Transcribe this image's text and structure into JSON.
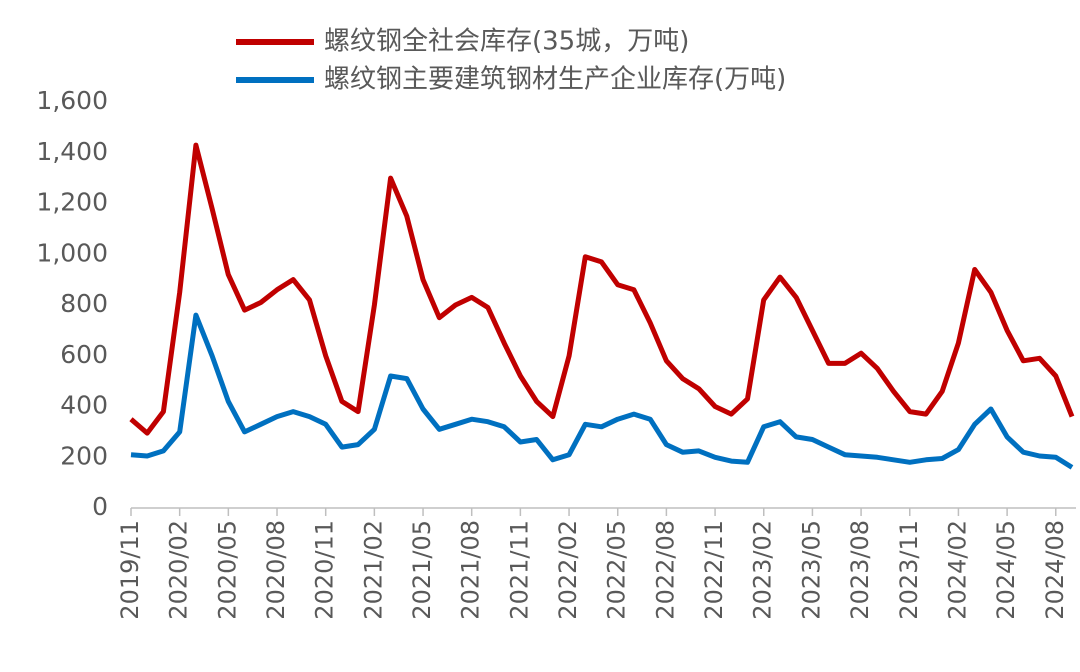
{
  "chart_data": {
    "type": "line",
    "categories": [
      "2019/11",
      null,
      null,
      "2020/02",
      null,
      null,
      "2020/05",
      null,
      null,
      "2020/08",
      null,
      null,
      "2020/11",
      null,
      null,
      "2021/02",
      null,
      null,
      "2021/05",
      null,
      null,
      "2021/08",
      null,
      null,
      "2021/11",
      null,
      null,
      "2022/02",
      null,
      null,
      "2022/05",
      null,
      null,
      "2022/08",
      null,
      null,
      "2022/11",
      null,
      null,
      "2023/02",
      null,
      null,
      "2023/05",
      null,
      null,
      "2023/08",
      null,
      null,
      "2023/11",
      null,
      null,
      "2024/02",
      null,
      null,
      "2024/05",
      null,
      null,
      "2024/08",
      null
    ],
    "series": [
      {
        "name": "螺纹钢全社会库存(35城，万吨)",
        "color": "#c00000",
        "values": [
          350,
          295,
          380,
          850,
          1430,
          1180,
          920,
          780,
          810,
          860,
          900,
          820,
          600,
          420,
          380,
          800,
          1300,
          1150,
          900,
          750,
          800,
          830,
          790,
          650,
          520,
          420,
          360,
          600,
          990,
          970,
          880,
          860,
          730,
          580,
          510,
          470,
          400,
          370,
          430,
          820,
          910,
          830,
          700,
          570,
          570,
          610,
          550,
          460,
          380,
          370,
          460,
          650,
          940,
          850,
          700,
          580,
          590,
          520,
          360
        ]
      },
      {
        "name": "螺纹钢主要建筑钢材生产企业库存(万吨)",
        "color": "#0070c0",
        "values": [
          210,
          205,
          225,
          300,
          760,
          600,
          420,
          300,
          330,
          360,
          380,
          360,
          330,
          240,
          250,
          310,
          520,
          510,
          390,
          310,
          330,
          350,
          340,
          320,
          260,
          270,
          190,
          210,
          330,
          320,
          350,
          370,
          350,
          250,
          220,
          225,
          200,
          185,
          180,
          320,
          340,
          280,
          270,
          240,
          210,
          205,
          200,
          190,
          180,
          190,
          195,
          230,
          330,
          390,
          280,
          220,
          205,
          200,
          160
        ]
      }
    ],
    "ylim": [
      0,
      1600
    ],
    "yticks": [
      0,
      200,
      400,
      600,
      800,
      {
        "value": 1000,
        "label": "1,000"
      },
      {
        "value": 1200,
        "label": "1,200"
      },
      {
        "value": 1400,
        "label": "1,400"
      },
      {
        "value": 1600,
        "label": "1,600"
      }
    ]
  }
}
